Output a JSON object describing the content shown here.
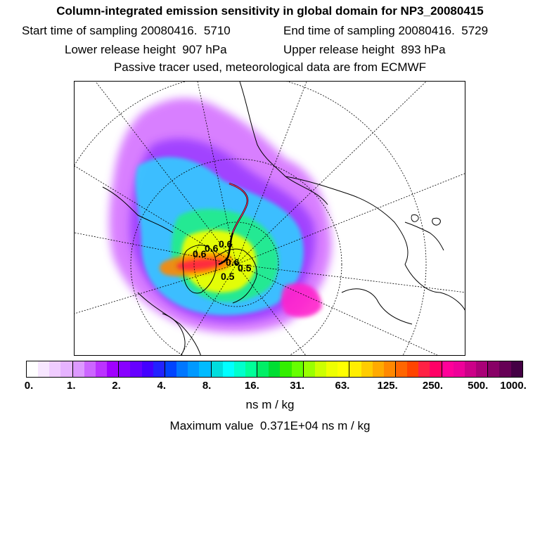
{
  "header": {
    "title": "Column-integrated emission sensitivity in global domain for NP3_20080415",
    "start_label": "Start time of sampling 20080416.  5710",
    "end_label": "End time of sampling 20080416.  5729",
    "lower_label": "Lower release height  907 hPa",
    "upper_label": "Upper release height  893 hPa",
    "tracer_note": "Passive tracer used, meteorological data are from ECMWF"
  },
  "map": {
    "projection": "north-polar-stereographic",
    "track_labels": [
      "0.6",
      "0.6",
      "0.6",
      "0.6",
      "0.5",
      "0.5"
    ]
  },
  "legend": {
    "tick_labels": [
      "0.",
      "1.",
      "2.",
      "4.",
      "8.",
      "16.",
      "31.",
      "63.",
      "125.",
      "250.",
      "500.",
      "1000."
    ],
    "unit": "ns m / kg",
    "colors": [
      "#ffffff",
      "#f7e6ff",
      "#f0ccff",
      "#e6b3ff",
      "#dd99ff",
      "#cc66ff",
      "#bb33ff",
      "#a000ff",
      "#8800ff",
      "#6600ff",
      "#4400ff",
      "#2222ff",
      "#0044ff",
      "#0077ff",
      "#0099ff",
      "#00bbff",
      "#00dddd",
      "#00ffff",
      "#00ffcc",
      "#00ff99",
      "#00ee66",
      "#00dd33",
      "#33ee00",
      "#66ff00",
      "#99ff00",
      "#ccff00",
      "#eeff00",
      "#ffff00",
      "#ffee00",
      "#ffcc00",
      "#ffaa00",
      "#ff8800",
      "#ff6600",
      "#ff4400",
      "#ff2244",
      "#ff0066",
      "#ff0099",
      "#ee0099",
      "#cc0088",
      "#aa0077",
      "#880066",
      "#660055",
      "#440044"
    ]
  },
  "maximum": {
    "text": "Maximum value  0.371E+04 ns m / kg"
  }
}
